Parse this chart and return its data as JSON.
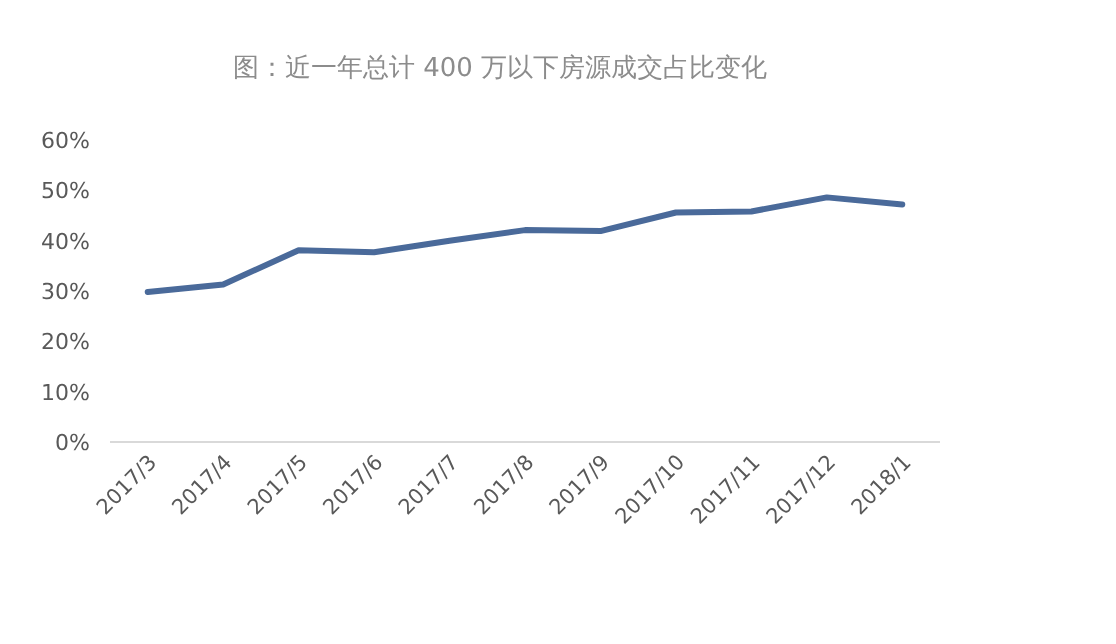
{
  "chart_data": {
    "type": "line",
    "title": "图：近一年总计 400 万以下房源成交占比变化",
    "categories": [
      "2017/3",
      "2017/4",
      "2017/5",
      "2017/6",
      "2017/7",
      "2017/8",
      "2017/9",
      "2017/10",
      "2017/11",
      "2017/12",
      "2018/1"
    ],
    "series": [
      {
        "color": "#4a6a9a",
        "values": [
          29.8,
          31.3,
          38.1,
          37.7,
          40,
          42.1,
          41.9,
          45.6,
          45.8,
          48.6,
          47.2
        ]
      }
    ],
    "ylim": [
      0,
      60
    ],
    "yticks": [
      {
        "value": 0,
        "label": "0%"
      },
      {
        "value": 10,
        "label": "10%"
      },
      {
        "value": 20,
        "label": "20%"
      },
      {
        "value": 30,
        "label": "30%"
      },
      {
        "value": 40,
        "label": "40%"
      },
      {
        "value": 50,
        "label": "50%"
      },
      {
        "value": 60,
        "label": "60%"
      }
    ],
    "grid": false,
    "marker": "none",
    "line_style": "solid"
  }
}
